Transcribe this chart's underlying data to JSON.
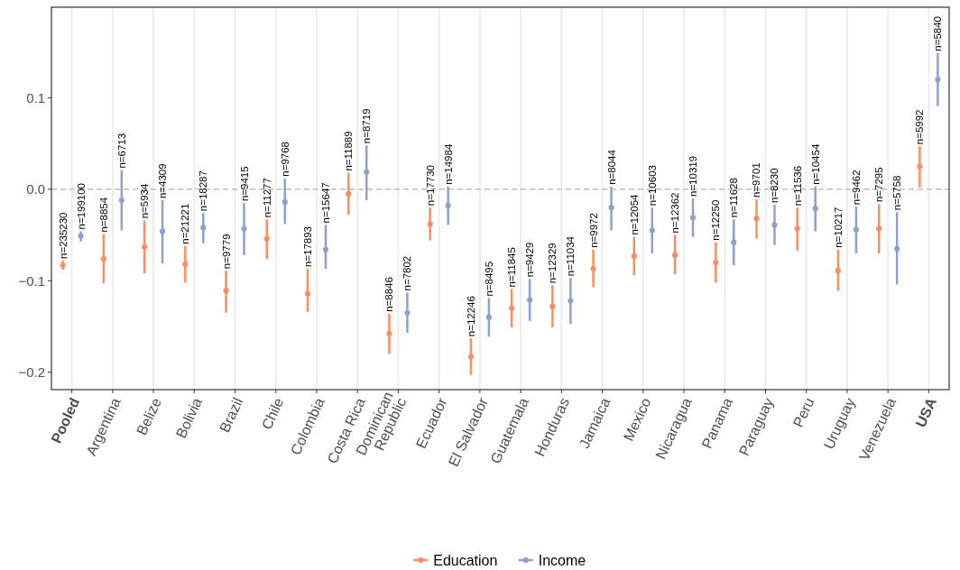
{
  "chart_data": {
    "type": "scatter",
    "categories": [
      "Pooled",
      "Argentina",
      "Belize",
      "Bolivia",
      "Brazil",
      "Chile",
      "Colombia",
      "Costa Rica",
      "Dominican\nRepublic",
      "Ecuador",
      "El Salvador",
      "Guatemala",
      "Honduras",
      "Jamaica",
      "Mexico",
      "Nicaragua",
      "Panama",
      "Paraguay",
      "Peru",
      "Uruguay",
      "Venezuela",
      "USA"
    ],
    "series": [
      {
        "name": "Education",
        "color": "#fc8d62",
        "values": [
          -0.083,
          -0.076,
          -0.063,
          -0.082,
          -0.111,
          -0.054,
          -0.114,
          -0.005,
          -0.158,
          -0.038,
          -0.183,
          -0.13,
          -0.128,
          -0.087,
          -0.073,
          -0.072,
          -0.08,
          -0.032,
          -0.043,
          -0.089,
          -0.043,
          0.025
        ],
        "errors": [
          [
            -0.088,
            -0.078
          ],
          [
            -0.103,
            -0.049
          ],
          [
            -0.092,
            -0.034
          ],
          [
            -0.102,
            -0.062
          ],
          [
            -0.135,
            -0.089
          ],
          [
            -0.076,
            -0.033
          ],
          [
            -0.134,
            -0.087
          ],
          [
            -0.028,
            0.018
          ],
          [
            -0.18,
            -0.136
          ],
          [
            -0.056,
            -0.02
          ],
          [
            -0.203,
            -0.163
          ],
          [
            -0.151,
            -0.109
          ],
          [
            -0.151,
            -0.105
          ],
          [
            -0.107,
            -0.066
          ],
          [
            -0.094,
            -0.052
          ],
          [
            -0.093,
            -0.05
          ],
          [
            -0.102,
            -0.058
          ],
          [
            -0.054,
            -0.011
          ],
          [
            -0.067,
            -0.02
          ],
          [
            -0.111,
            -0.066
          ],
          [
            -0.07,
            -0.016
          ],
          [
            0.002,
            0.047
          ]
        ]
      },
      {
        "name": "Income",
        "color": "#8da0cb",
        "values": [
          -0.051,
          -0.012,
          -0.046,
          -0.042,
          -0.043,
          -0.014,
          -0.066,
          0.019,
          -0.135,
          -0.018,
          -0.14,
          -0.121,
          -0.122,
          -0.02,
          -0.045,
          -0.031,
          -0.058,
          -0.039,
          -0.021,
          -0.044,
          -0.065,
          0.12
        ],
        "errors": [
          [
            -0.057,
            -0.046
          ],
          [
            -0.045,
            0.021
          ],
          [
            -0.081,
            -0.012
          ],
          [
            -0.059,
            -0.026
          ],
          [
            -0.072,
            -0.015
          ],
          [
            -0.038,
            0.012
          ],
          [
            -0.087,
            -0.039
          ],
          [
            -0.012,
            0.048
          ],
          [
            -0.157,
            -0.113
          ],
          [
            -0.039,
            0.003
          ],
          [
            -0.161,
            -0.119
          ],
          [
            -0.144,
            -0.098
          ],
          [
            -0.147,
            -0.097
          ],
          [
            -0.045,
            0.003
          ],
          [
            -0.07,
            -0.02
          ],
          [
            -0.052,
            -0.01
          ],
          [
            -0.083,
            -0.033
          ],
          [
            -0.061,
            -0.017
          ],
          [
            -0.046,
            0.003
          ],
          [
            -0.07,
            -0.019
          ],
          [
            -0.104,
            -0.025
          ],
          [
            0.091,
            0.149
          ]
        ]
      }
    ],
    "annotations": [
      "n=235230",
      "n=199100",
      "n=8854",
      "n=6713",
      "n=5934",
      "n=4309",
      "n=21221",
      "n=18287",
      "n=9779",
      "n=9415",
      "n=11277",
      "n=9768",
      "n=17893",
      "n=15647",
      "n=11889",
      "n=8719",
      "n=8846",
      "n=7802",
      "n=17730",
      "n=14984",
      "n=12246",
      "n=8495",
      "n=11845",
      "n=9429",
      "n=12329",
      "n=11034",
      "n=9972",
      "n=8044",
      "n=12054",
      "n=10603",
      "n=12362",
      "n=10319",
      "n=12250",
      "n=11628",
      "n=9701",
      "n=8230",
      "n=11536",
      "n=10454",
      "n=10217",
      "n=9462",
      "n=7295",
      "n=5758",
      "n=5992",
      "n=5840"
    ],
    "ylim": [
      -0.219,
      0.199
    ],
    "yticks": [
      {
        "value": -0.2,
        "label": "−0.2"
      },
      {
        "value": -0.1,
        "label": "−0.1"
      },
      {
        "value": 0,
        "label": "0.0"
      },
      {
        "value": 0.1,
        "label": "0.1"
      }
    ],
    "ref_lines": [
      {
        "axis": "y",
        "value": 0,
        "color": "#bdbdbd",
        "line_style": "dashed"
      }
    ],
    "grid": "x",
    "legend": "bottom",
    "marker": "circle"
  }
}
